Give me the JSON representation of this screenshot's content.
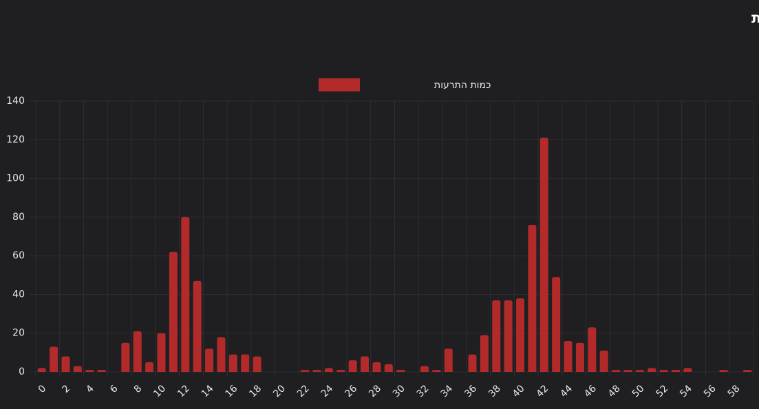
{
  "chart_data": {
    "type": "bar",
    "title": "התרעות לפי דקות",
    "categories": [
      "0",
      null,
      "2",
      null,
      "4",
      null,
      "6",
      null,
      "8",
      null,
      "10",
      null,
      "12",
      null,
      "14",
      null,
      "16",
      null,
      "18",
      null,
      "20",
      null,
      "22",
      null,
      "24",
      null,
      "26",
      null,
      "28",
      null,
      "30",
      null,
      "32",
      null,
      "34",
      null,
      "36",
      null,
      "38",
      null,
      "40",
      null,
      "42",
      null,
      "44",
      null,
      "46",
      null,
      "48",
      null,
      "50",
      null,
      "52",
      null,
      "54",
      null,
      "56",
      null,
      "58",
      null
    ],
    "series": [
      {
        "name": "כמות התרעות",
        "color": "#b22a2a",
        "values": [
          2,
          13,
          8,
          3,
          1,
          1,
          0,
          15,
          21,
          5,
          20,
          62,
          80,
          47,
          12,
          18,
          9,
          9,
          8,
          0,
          0,
          0,
          1,
          1,
          2,
          1,
          6,
          8,
          5,
          4,
          1,
          0,
          3,
          1,
          12,
          0,
          9,
          19,
          37,
          37,
          38,
          76,
          121,
          49,
          16,
          15,
          23,
          11,
          1,
          1,
          1,
          2,
          1,
          1,
          2,
          0,
          0,
          1,
          0,
          1
        ]
      }
    ],
    "ylim": [
      0,
      140
    ],
    "yticks": [
      0,
      20,
      40,
      60,
      80,
      100,
      120,
      140
    ],
    "grid": true,
    "legend": "top"
  }
}
